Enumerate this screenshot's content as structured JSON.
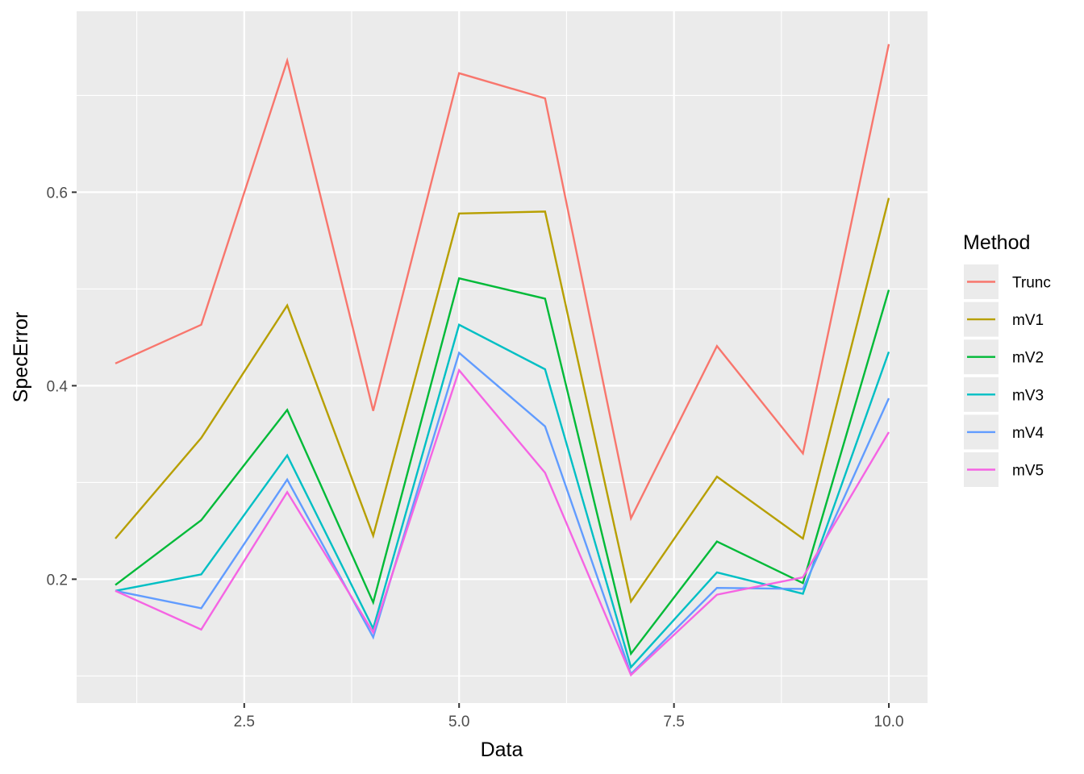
{
  "chart_data": {
    "type": "line",
    "xlabel": "Data",
    "ylabel": "SpecError",
    "xlim": [
      0.55,
      10.45
    ],
    "ylim": [
      0.072,
      0.787
    ],
    "x_ticks": [
      2.5,
      5.0,
      7.5,
      10.0
    ],
    "x_tick_labels": [
      "2.5",
      "5.0",
      "7.5",
      "10.0"
    ],
    "y_ticks": [
      0.2,
      0.4,
      0.6
    ],
    "y_tick_labels": [
      "0.2",
      "0.4",
      "0.6"
    ],
    "grid": true,
    "legend": {
      "title": "Method",
      "position": "right"
    },
    "x": [
      1,
      2,
      3,
      4,
      5,
      6,
      7,
      8,
      9,
      10
    ],
    "series": [
      {
        "name": "Trunc",
        "color": "#F8766D",
        "values": [
          0.423,
          0.463,
          0.736,
          0.374,
          0.723,
          0.697,
          0.263,
          0.441,
          0.33,
          0.753
        ]
      },
      {
        "name": "mV1",
        "color": "#B79F00",
        "values": [
          0.242,
          0.346,
          0.483,
          0.245,
          0.578,
          0.58,
          0.177,
          0.306,
          0.242,
          0.594
        ]
      },
      {
        "name": "mV2",
        "color": "#00BA38",
        "values": [
          0.194,
          0.261,
          0.375,
          0.176,
          0.511,
          0.49,
          0.123,
          0.239,
          0.196,
          0.499
        ]
      },
      {
        "name": "mV3",
        "color": "#00BFC4",
        "values": [
          0.188,
          0.205,
          0.328,
          0.149,
          0.463,
          0.417,
          0.109,
          0.207,
          0.185,
          0.435
        ]
      },
      {
        "name": "mV4",
        "color": "#619CFF",
        "values": [
          0.188,
          0.17,
          0.303,
          0.14,
          0.434,
          0.358,
          0.102,
          0.191,
          0.19,
          0.387
        ]
      },
      {
        "name": "mV5",
        "color": "#F564E3",
        "values": [
          0.188,
          0.148,
          0.29,
          0.145,
          0.416,
          0.31,
          0.101,
          0.184,
          0.202,
          0.352
        ]
      }
    ]
  }
}
